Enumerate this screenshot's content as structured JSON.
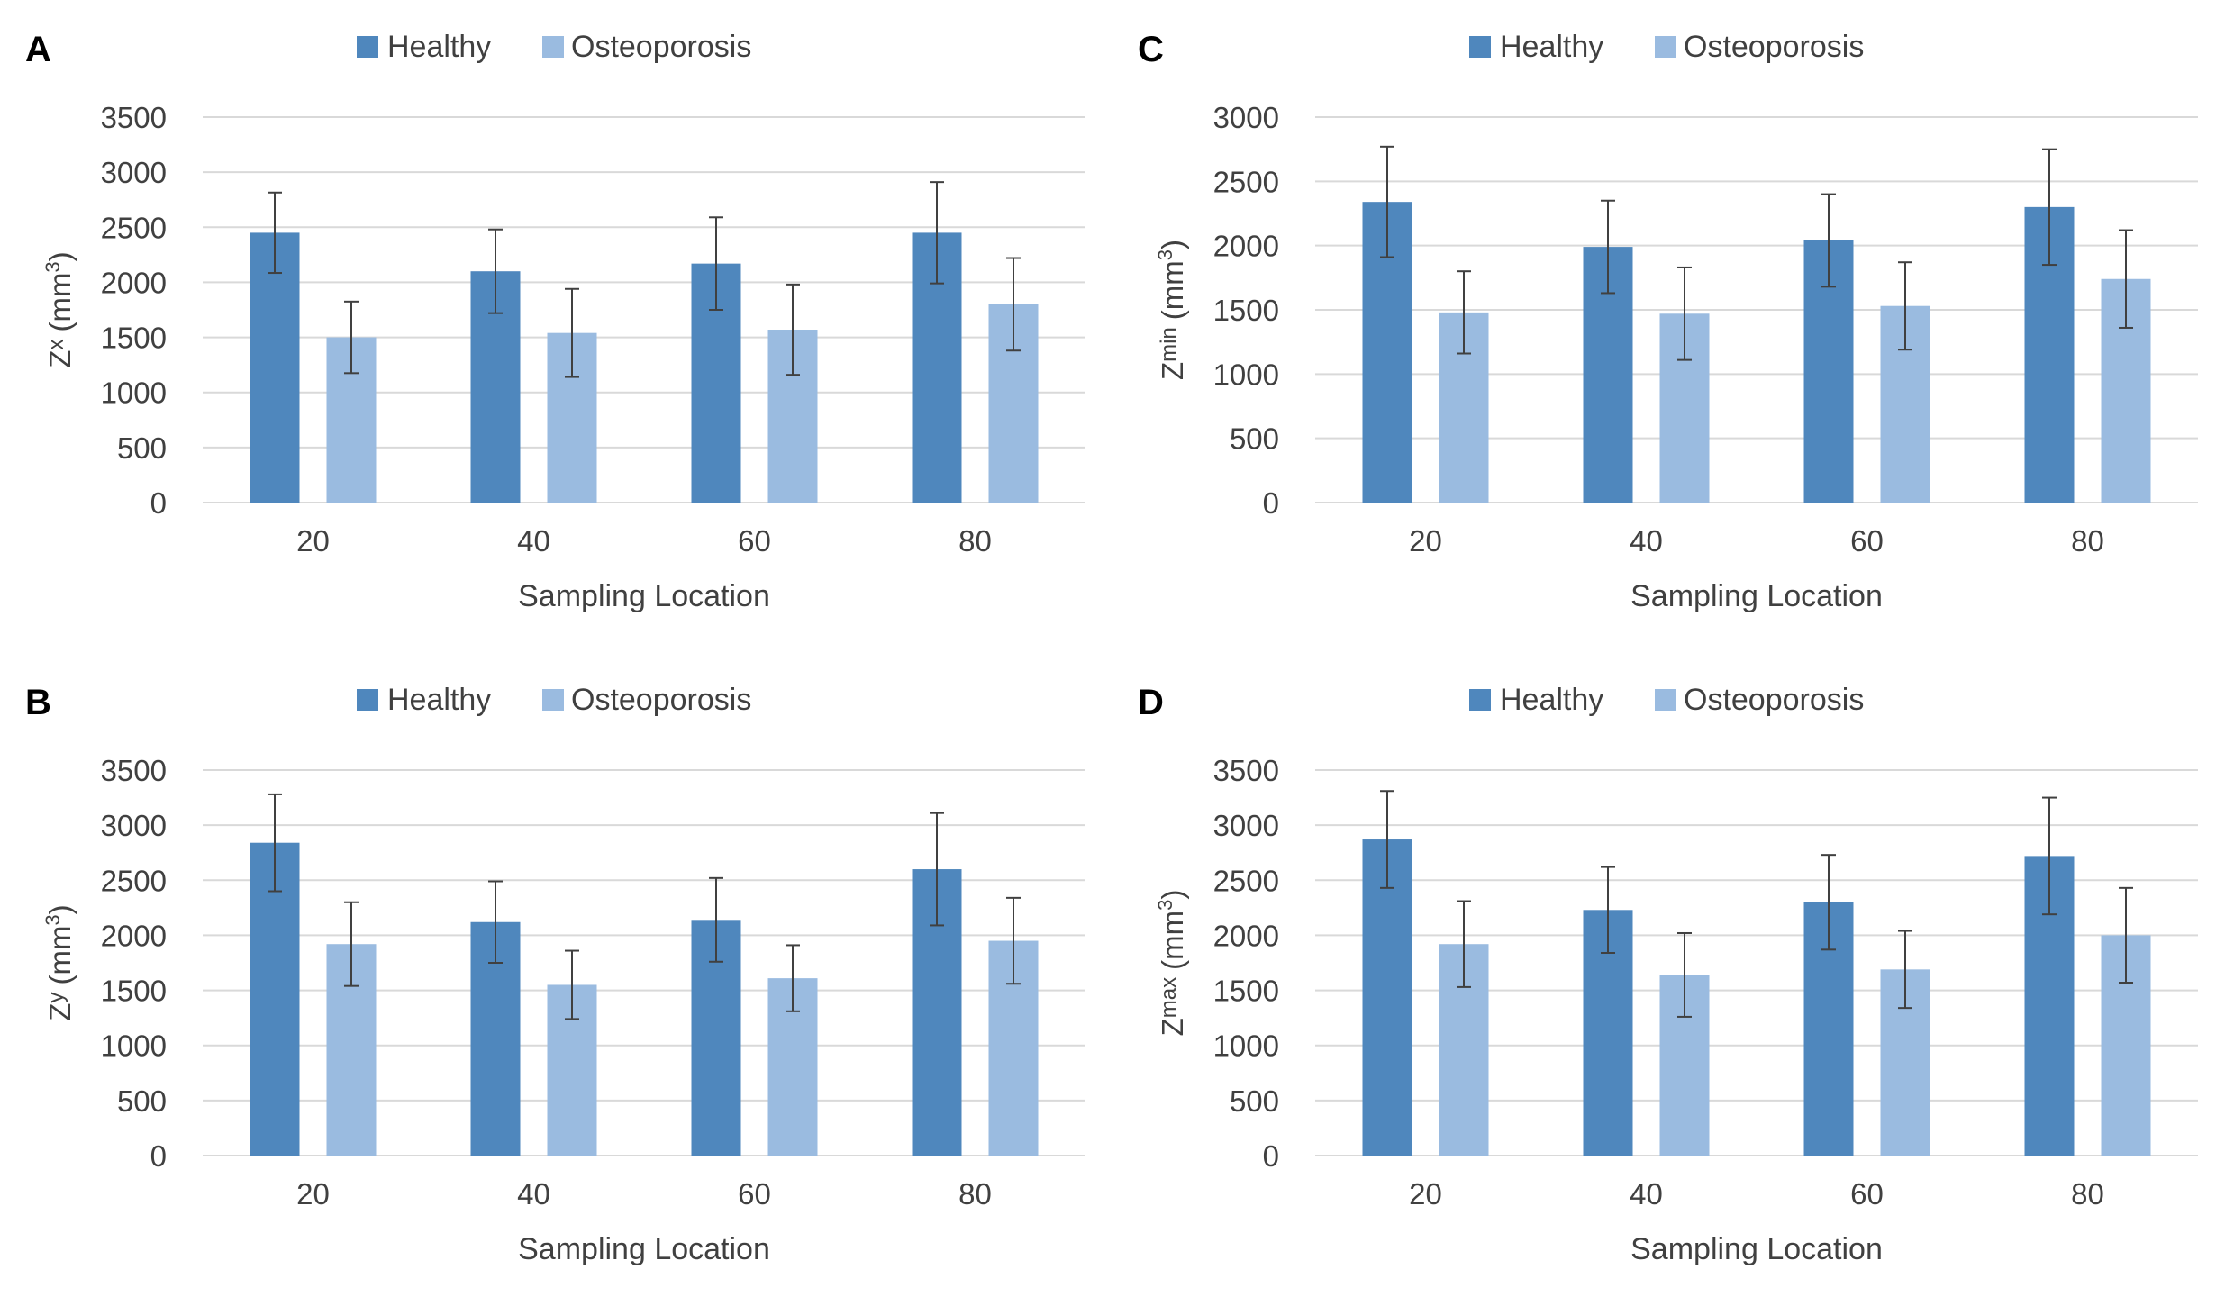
{
  "colors": {
    "healthy": "#4f87bd",
    "osteoporosis": "#9abbe0",
    "grid": "#d9d9d9",
    "errorbar": "#404040"
  },
  "legend": {
    "healthy": "Healthy",
    "osteoporosis": "Osteoporosis"
  },
  "chart_data": [
    {
      "panel": "A",
      "type": "bar",
      "categories": [
        "20",
        "40",
        "60",
        "80"
      ],
      "xlabel": "Sampling Location",
      "ylabel_main": "Z",
      "ylabel_sub": "x",
      "ylabel_unit": "(mm",
      "ylabel_sup": "3",
      "ylabel_close": ")",
      "ylim": [
        0,
        3500
      ],
      "yticks": [
        "0",
        "500",
        "1000",
        "1500",
        "2000",
        "2500",
        "3000",
        "3500"
      ],
      "series": [
        {
          "name": "Healthy",
          "values": [
            2450,
            2100,
            2170,
            2450
          ],
          "error": [
            365,
            380,
            420,
            460
          ]
        },
        {
          "name": "Osteoporosis",
          "values": [
            1500,
            1540,
            1570,
            1800
          ],
          "error": [
            325,
            400,
            410,
            420
          ]
        }
      ]
    },
    {
      "panel": "C",
      "type": "bar",
      "categories": [
        "20",
        "40",
        "60",
        "80"
      ],
      "xlabel": "Sampling Location",
      "ylabel_main": "Z",
      "ylabel_sub": "min",
      "ylabel_unit": "(mm",
      "ylabel_sup": "3",
      "ylabel_close": ")",
      "ylim": [
        0,
        3000
      ],
      "yticks": [
        "0",
        "500",
        "1000",
        "1500",
        "2000",
        "2500",
        "3000"
      ],
      "series": [
        {
          "name": "Healthy",
          "values": [
            2340,
            1990,
            2040,
            2300
          ],
          "error": [
            430,
            360,
            360,
            450
          ]
        },
        {
          "name": "Osteoporosis",
          "values": [
            1480,
            1470,
            1530,
            1740
          ],
          "error": [
            320,
            360,
            340,
            380
          ]
        }
      ]
    },
    {
      "panel": "B",
      "type": "bar",
      "categories": [
        "20",
        "40",
        "60",
        "80"
      ],
      "xlabel": "Sampling Location",
      "ylabel_main": "Z",
      "ylabel_sub": "y",
      "ylabel_unit": "(mm",
      "ylabel_sup": "3",
      "ylabel_close": ")",
      "ylim": [
        0,
        3500
      ],
      "yticks": [
        "0",
        "500",
        "1000",
        "1500",
        "2000",
        "2500",
        "3000",
        "3500"
      ],
      "series": [
        {
          "name": "Healthy",
          "values": [
            2840,
            2120,
            2140,
            2600
          ],
          "error": [
            440,
            370,
            380,
            510
          ]
        },
        {
          "name": "Osteoporosis",
          "values": [
            1920,
            1550,
            1610,
            1950
          ],
          "error": [
            380,
            310,
            300,
            390
          ]
        }
      ]
    },
    {
      "panel": "D",
      "type": "bar",
      "categories": [
        "20",
        "40",
        "60",
        "80"
      ],
      "xlabel": "Sampling Location",
      "ylabel_main": "Z",
      "ylabel_sub": "max",
      "ylabel_unit": "(mm",
      "ylabel_sup": "3",
      "ylabel_close": ")",
      "ylim": [
        0,
        3500
      ],
      "yticks": [
        "0",
        "500",
        "1000",
        "1500",
        "2000",
        "2500",
        "3000",
        "3500"
      ],
      "series": [
        {
          "name": "Healthy",
          "values": [
            2870,
            2230,
            2300,
            2720
          ],
          "error": [
            440,
            390,
            430,
            530
          ]
        },
        {
          "name": "Osteoporosis",
          "values": [
            1920,
            1640,
            1690,
            2000
          ],
          "error": [
            390,
            380,
            350,
            430
          ]
        }
      ]
    }
  ]
}
